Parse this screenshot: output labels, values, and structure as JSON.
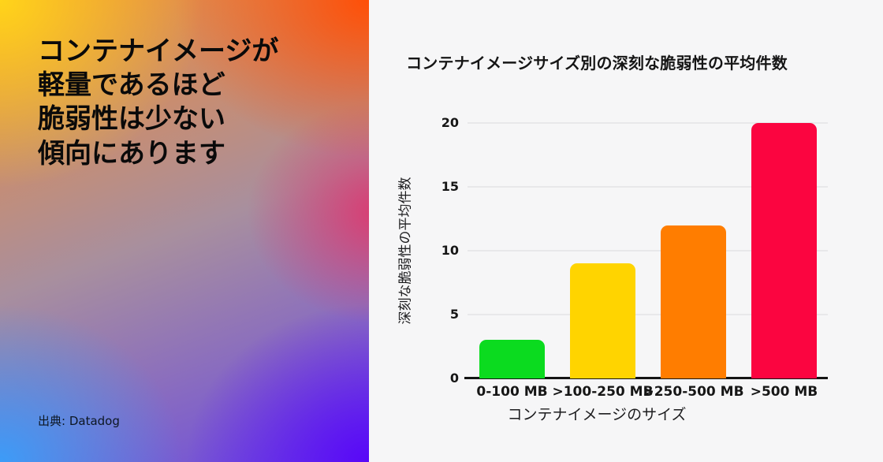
{
  "left_panel": {
    "headline_lines": [
      "コンテナイメージが",
      "軽量であるほど",
      "脆弱性は少ない",
      "傾向にあります"
    ],
    "source": "出典: Datadog"
  },
  "chart_data": {
    "type": "bar",
    "title": "コンテナイメージサイズ別の深刻な脆弱性の平均件数",
    "categories": [
      "0-100 MB",
      ">100-250 MB",
      ">250-500 MB",
      ">500 MB"
    ],
    "values": [
      3,
      9,
      12,
      20
    ],
    "bar_colors": [
      "#0bdb1f",
      "#ffd400",
      "#ff7d00",
      "#fb0540"
    ],
    "xlabel": "コンテナイメージのサイズ",
    "ylabel": "深刻な脆弱性の平均件数",
    "ylim": [
      0,
      20
    ],
    "yticks": [
      0,
      5,
      10,
      15,
      20
    ],
    "grid": "horizontal",
    "legend": "none"
  },
  "theme": {
    "right_bg": "#f6f6f7",
    "grid_color": "#e8e8ea",
    "axis_color": "#141414",
    "gradient": {
      "top_left": "#ffd41a",
      "top_right": "#ff4f07",
      "mid_right": "#de376e",
      "bottom_right": "#5807f8",
      "bottom_left": "#3c9cf8"
    }
  }
}
